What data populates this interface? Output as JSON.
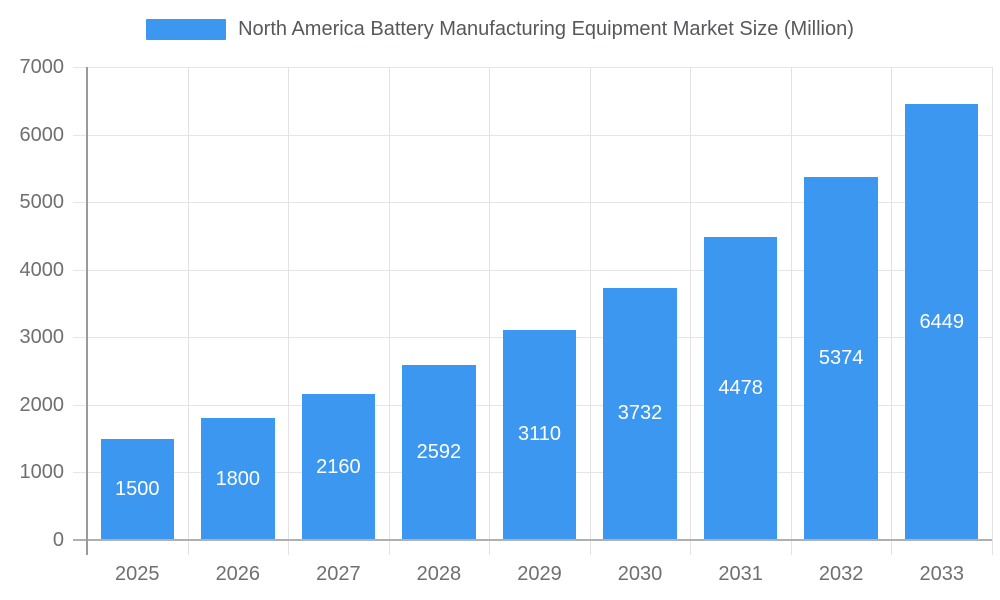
{
  "legend": {
    "label": "North America Battery Manufacturing Equipment Market Size (Million)"
  },
  "chart_data": {
    "type": "bar",
    "title": "North America Battery Manufacturing Equipment Market Size (Million)",
    "categories": [
      "2025",
      "2026",
      "2027",
      "2028",
      "2029",
      "2030",
      "2031",
      "2032",
      "2033"
    ],
    "values": [
      1500,
      1800,
      2160,
      2592,
      3110,
      3732,
      4478,
      5374,
      6449
    ],
    "xlabel": "",
    "ylabel": "",
    "ylim": [
      0,
      7000
    ],
    "ytick_step": 1000,
    "grid": true,
    "legend_position": "top",
    "bar_fraction_of_band": 0.73,
    "colors": {
      "bar": "#3C97F0",
      "value_label": "#ffffff",
      "grid": "#e6e6e6",
      "axis": "#a8a8a8",
      "tick_text": "#6f6f6f",
      "legend_text": "#56585c"
    }
  }
}
